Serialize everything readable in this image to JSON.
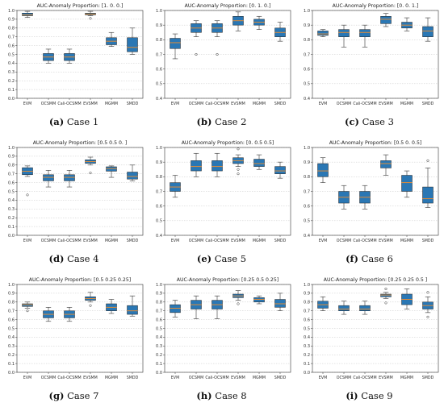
{
  "chart_data": [
    {
      "type": "boxplot",
      "title": "AUC-Anomaly Proportion: [1. 0. 0.]",
      "caption_label": "(a)",
      "caption_text": "Case 1",
      "categories": [
        "EVM",
        "OCSMM",
        "Cali-OCSMM",
        "EVSMM",
        "MGMM",
        "SMDD"
      ],
      "ylim": [
        0.0,
        1.0
      ],
      "yticks": [
        "0.0",
        "0.1",
        "0.2",
        "0.3",
        "0.4",
        "0.5",
        "0.6",
        "0.7",
        "0.8",
        "0.9",
        "1.0"
      ],
      "boxes": [
        {
          "whislo": 0.92,
          "q1": 0.94,
          "med": 0.95,
          "q3": 0.97,
          "whishi": 0.99,
          "fliers": []
        },
        {
          "whislo": 0.4,
          "q1": 0.43,
          "med": 0.47,
          "q3": 0.51,
          "whishi": 0.56,
          "fliers": []
        },
        {
          "whislo": 0.4,
          "q1": 0.43,
          "med": 0.47,
          "q3": 0.51,
          "whishi": 0.56,
          "fliers": []
        },
        {
          "whislo": 0.94,
          "q1": 0.95,
          "med": 0.96,
          "q3": 0.97,
          "whishi": 0.99,
          "fliers": [
            0.91
          ]
        },
        {
          "whislo": 0.59,
          "q1": 0.61,
          "med": 0.65,
          "q3": 0.69,
          "whishi": 0.75,
          "fliers": []
        },
        {
          "whislo": 0.5,
          "q1": 0.53,
          "med": 0.58,
          "q3": 0.69,
          "whishi": 0.8,
          "fliers": []
        }
      ]
    },
    {
      "type": "boxplot",
      "title": "AUC-Anomaly Proportion: [0. 1. 0.]",
      "caption_label": "(b)",
      "caption_text": "Case 2",
      "categories": [
        "EVM",
        "OCSMM",
        "Cali-OCSMM",
        "EVSMM",
        "MGMM",
        "SMDD"
      ],
      "ylim": [
        0.4,
        1.0
      ],
      "yticks": [
        "0.4",
        "0.5",
        "0.6",
        "0.7",
        "0.8",
        "0.9",
        "1.0"
      ],
      "boxes": [
        {
          "whislo": 0.67,
          "q1": 0.74,
          "med": 0.78,
          "q3": 0.81,
          "whishi": 0.84,
          "fliers": []
        },
        {
          "whislo": 0.82,
          "q1": 0.85,
          "med": 0.88,
          "q3": 0.91,
          "whishi": 0.93,
          "fliers": [
            0.7
          ]
        },
        {
          "whislo": 0.82,
          "q1": 0.85,
          "med": 0.88,
          "q3": 0.91,
          "whishi": 0.93,
          "fliers": [
            0.7
          ]
        },
        {
          "whislo": 0.86,
          "q1": 0.9,
          "med": 0.93,
          "q3": 0.96,
          "whishi": 0.99,
          "fliers": []
        },
        {
          "whislo": 0.87,
          "q1": 0.9,
          "med": 0.92,
          "q3": 0.94,
          "whishi": 0.96,
          "fliers": []
        },
        {
          "whislo": 0.79,
          "q1": 0.82,
          "med": 0.85,
          "q3": 0.88,
          "whishi": 0.92,
          "fliers": []
        }
      ]
    },
    {
      "type": "boxplot",
      "title": "AUC-Anomaly Proportion: [0. 0. 1.]",
      "caption_label": "(c)",
      "caption_text": "Case 3",
      "categories": [
        "EVM",
        "OCSMM",
        "Cali-OCSMM",
        "EVSMM",
        "MGMM",
        "SMDD"
      ],
      "ylim": [
        0.4,
        1.0
      ],
      "yticks": [
        "0.4",
        "0.5",
        "0.6",
        "0.7",
        "0.8",
        "0.9",
        "1.0"
      ],
      "boxes": [
        {
          "whislo": 0.82,
          "q1": 0.83,
          "med": 0.84,
          "q3": 0.86,
          "whishi": 0.87,
          "fliers": []
        },
        {
          "whislo": 0.75,
          "q1": 0.82,
          "med": 0.85,
          "q3": 0.87,
          "whishi": 0.9,
          "fliers": []
        },
        {
          "whislo": 0.75,
          "q1": 0.82,
          "med": 0.85,
          "q3": 0.87,
          "whishi": 0.9,
          "fliers": []
        },
        {
          "whislo": 0.89,
          "q1": 0.91,
          "med": 0.94,
          "q3": 0.96,
          "whishi": 0.98,
          "fliers": []
        },
        {
          "whislo": 0.86,
          "q1": 0.88,
          "med": 0.9,
          "q3": 0.92,
          "whishi": 0.95,
          "fliers": []
        },
        {
          "whislo": 0.79,
          "q1": 0.82,
          "med": 0.86,
          "q3": 0.89,
          "whishi": 0.95,
          "fliers": []
        }
      ]
    },
    {
      "type": "boxplot",
      "title": "AUC-Anomaly Proportion: [0.5 0.5 0. ]",
      "caption_label": "(d)",
      "caption_text": "Case 4",
      "categories": [
        "EVM",
        "OCSMM",
        "Cali-OCSMM",
        "EVSMM",
        "MGMM",
        "SMDD"
      ],
      "ylim": [
        0.0,
        1.0
      ],
      "yticks": [
        "0.0",
        "0.1",
        "0.2",
        "0.3",
        "0.4",
        "0.5",
        "0.6",
        "0.7",
        "0.8",
        "0.9",
        "1.0"
      ],
      "boxes": [
        {
          "whislo": 0.67,
          "q1": 0.69,
          "med": 0.73,
          "q3": 0.77,
          "whishi": 0.79,
          "fliers": [
            0.46
          ]
        },
        {
          "whislo": 0.55,
          "q1": 0.62,
          "med": 0.66,
          "q3": 0.69,
          "whishi": 0.74,
          "fliers": []
        },
        {
          "whislo": 0.55,
          "q1": 0.62,
          "med": 0.66,
          "q3": 0.69,
          "whishi": 0.74,
          "fliers": []
        },
        {
          "whislo": 0.8,
          "q1": 0.82,
          "med": 0.84,
          "q3": 0.86,
          "whishi": 0.89,
          "fliers": [
            0.71
          ]
        },
        {
          "whislo": 0.66,
          "q1": 0.73,
          "med": 0.76,
          "q3": 0.78,
          "whishi": 0.79,
          "fliers": []
        },
        {
          "whislo": 0.62,
          "q1": 0.64,
          "med": 0.67,
          "q3": 0.72,
          "whishi": 0.8,
          "fliers": []
        }
      ]
    },
    {
      "type": "boxplot",
      "title": "AUC-Anomaly Proportion: [0.  0.5 0.5]",
      "caption_label": "(e)",
      "caption_text": "Case 5",
      "categories": [
        "EVM",
        "OCSMM",
        "Cali-OCSMM",
        "EVSMM",
        "MGMM",
        "SMDD"
      ],
      "ylim": [
        0.4,
        1.0
      ],
      "yticks": [
        "0.4",
        "0.5",
        "0.6",
        "0.7",
        "0.8",
        "0.9",
        "1.0"
      ],
      "boxes": [
        {
          "whislo": 0.66,
          "q1": 0.7,
          "med": 0.73,
          "q3": 0.76,
          "whishi": 0.81,
          "fliers": []
        },
        {
          "whislo": 0.8,
          "q1": 0.84,
          "med": 0.87,
          "q3": 0.91,
          "whishi": 0.96,
          "fliers": []
        },
        {
          "whislo": 0.8,
          "q1": 0.84,
          "med": 0.87,
          "q3": 0.91,
          "whishi": 0.96,
          "fliers": []
        },
        {
          "whislo": 0.87,
          "q1": 0.89,
          "med": 0.91,
          "q3": 0.93,
          "whishi": 0.95,
          "fliers": [
            0.85,
            0.82,
            0.99
          ]
        },
        {
          "whislo": 0.85,
          "q1": 0.87,
          "med": 0.89,
          "q3": 0.92,
          "whishi": 0.95,
          "fliers": []
        },
        {
          "whislo": 0.79,
          "q1": 0.82,
          "med": 0.84,
          "q3": 0.87,
          "whishi": 0.9,
          "fliers": []
        }
      ]
    },
    {
      "type": "boxplot",
      "title": "AUC-Anomaly Proportion: [0.5 0.  0.5]",
      "caption_label": "(f)",
      "caption_text": "Case 6",
      "categories": [
        "EVM",
        "OCSMM",
        "Cali-OCSMM",
        "EVSMM",
        "MGMM",
        "SMDD"
      ],
      "ylim": [
        0.4,
        1.0
      ],
      "yticks": [
        "0.4",
        "0.5",
        "0.6",
        "0.7",
        "0.8",
        "0.9",
        "1.0"
      ],
      "boxes": [
        {
          "whislo": 0.76,
          "q1": 0.8,
          "med": 0.84,
          "q3": 0.89,
          "whishi": 0.93,
          "fliers": []
        },
        {
          "whislo": 0.58,
          "q1": 0.62,
          "med": 0.66,
          "q3": 0.7,
          "whishi": 0.74,
          "fliers": []
        },
        {
          "whislo": 0.58,
          "q1": 0.62,
          "med": 0.66,
          "q3": 0.7,
          "whishi": 0.74,
          "fliers": []
        },
        {
          "whislo": 0.81,
          "q1": 0.86,
          "med": 0.89,
          "q3": 0.91,
          "whishi": 0.95,
          "fliers": []
        },
        {
          "whislo": 0.66,
          "q1": 0.7,
          "med": 0.76,
          "q3": 0.81,
          "whishi": 0.84,
          "fliers": []
        },
        {
          "whislo": 0.59,
          "q1": 0.62,
          "med": 0.65,
          "q3": 0.73,
          "whishi": 0.86,
          "fliers": [
            0.91
          ]
        }
      ]
    },
    {
      "type": "boxplot",
      "title": "AUC-Anomaly Proportion: [0.5  0.25 0.25]",
      "caption_label": "(g)",
      "caption_text": "Case 7",
      "categories": [
        "EVM",
        "OCSMM",
        "Cali-OCSMM",
        "EVSMM",
        "MGMM",
        "SMDD"
      ],
      "ylim": [
        0.0,
        1.0
      ],
      "yticks": [
        "0.0",
        "0.1",
        "0.2",
        "0.3",
        "0.4",
        "0.5",
        "0.6",
        "0.7",
        "0.8",
        "0.9",
        "1.0"
      ],
      "boxes": [
        {
          "whislo": 0.73,
          "q1": 0.75,
          "med": 0.77,
          "q3": 0.78,
          "whishi": 0.8,
          "fliers": [
            0.7
          ]
        },
        {
          "whislo": 0.58,
          "q1": 0.62,
          "med": 0.66,
          "q3": 0.7,
          "whishi": 0.74,
          "fliers": []
        },
        {
          "whislo": 0.58,
          "q1": 0.62,
          "med": 0.66,
          "q3": 0.7,
          "whishi": 0.74,
          "fliers": []
        },
        {
          "whislo": 0.8,
          "q1": 0.82,
          "med": 0.84,
          "q3": 0.86,
          "whishi": 0.91,
          "fliers": [
            0.76
          ]
        },
        {
          "whislo": 0.67,
          "q1": 0.7,
          "med": 0.74,
          "q3": 0.78,
          "whishi": 0.83,
          "fliers": []
        },
        {
          "whislo": 0.64,
          "q1": 0.66,
          "med": 0.7,
          "q3": 0.76,
          "whishi": 0.87,
          "fliers": []
        }
      ]
    },
    {
      "type": "boxplot",
      "title": "AUC-Anomaly Proportion: [0.25 0.5  0.25]",
      "caption_label": "(h)",
      "caption_text": "Case 8",
      "categories": [
        "EVM",
        "OCSMM",
        "Cali-OCSMM",
        "EVSMM",
        "MGMM",
        "SMDD"
      ],
      "ylim": [
        0.0,
        1.0
      ],
      "yticks": [
        "0.0",
        "0.1",
        "0.2",
        "0.3",
        "0.4",
        "0.5",
        "0.6",
        "0.7",
        "0.8",
        "0.9",
        "1.0"
      ],
      "boxes": [
        {
          "whislo": 0.63,
          "q1": 0.68,
          "med": 0.73,
          "q3": 0.77,
          "whishi": 0.82,
          "fliers": []
        },
        {
          "whislo": 0.61,
          "q1": 0.72,
          "med": 0.77,
          "q3": 0.82,
          "whishi": 0.87,
          "fliers": []
        },
        {
          "whislo": 0.61,
          "q1": 0.72,
          "med": 0.77,
          "q3": 0.82,
          "whishi": 0.87,
          "fliers": []
        },
        {
          "whislo": 0.82,
          "q1": 0.85,
          "med": 0.87,
          "q3": 0.89,
          "whishi": 0.93,
          "fliers": [
            0.78
          ]
        },
        {
          "whislo": 0.78,
          "q1": 0.8,
          "med": 0.83,
          "q3": 0.85,
          "whishi": 0.87,
          "fliers": []
        },
        {
          "whislo": 0.7,
          "q1": 0.74,
          "med": 0.78,
          "q3": 0.83,
          "whishi": 0.9,
          "fliers": []
        }
      ]
    },
    {
      "type": "boxplot",
      "title": "AUC-Anomaly Proportion: [0.25 0.25 0.5 ]",
      "caption_label": "(i)",
      "caption_text": "Case 9",
      "categories": [
        "EVM",
        "OCSMM",
        "Cali-OCSMM",
        "EVSMM",
        "MGMM",
        "SMDD"
      ],
      "ylim": [
        0.0,
        1.0
      ],
      "yticks": [
        "0.0",
        "0.1",
        "0.2",
        "0.3",
        "0.4",
        "0.5",
        "0.6",
        "0.7",
        "0.8",
        "0.9",
        "1.0"
      ],
      "boxes": [
        {
          "whislo": 0.7,
          "q1": 0.73,
          "med": 0.77,
          "q3": 0.81,
          "whishi": 0.86,
          "fliers": []
        },
        {
          "whislo": 0.66,
          "q1": 0.7,
          "med": 0.72,
          "q3": 0.76,
          "whishi": 0.81,
          "fliers": []
        },
        {
          "whislo": 0.66,
          "q1": 0.7,
          "med": 0.72,
          "q3": 0.76,
          "whishi": 0.81,
          "fliers": []
        },
        {
          "whislo": 0.84,
          "q1": 0.86,
          "med": 0.88,
          "q3": 0.89,
          "whishi": 0.91,
          "fliers": [
            0.79,
            0.95
          ]
        },
        {
          "whislo": 0.72,
          "q1": 0.77,
          "med": 0.83,
          "q3": 0.89,
          "whishi": 0.95,
          "fliers": []
        },
        {
          "whislo": 0.68,
          "q1": 0.72,
          "med": 0.76,
          "q3": 0.8,
          "whishi": 0.86,
          "fliers": [
            0.63,
            0.91
          ]
        }
      ]
    }
  ],
  "style": {
    "box_fill": "#2a77b4",
    "median_color": "#f28e2b",
    "grid_color": "#c8c8c8"
  }
}
